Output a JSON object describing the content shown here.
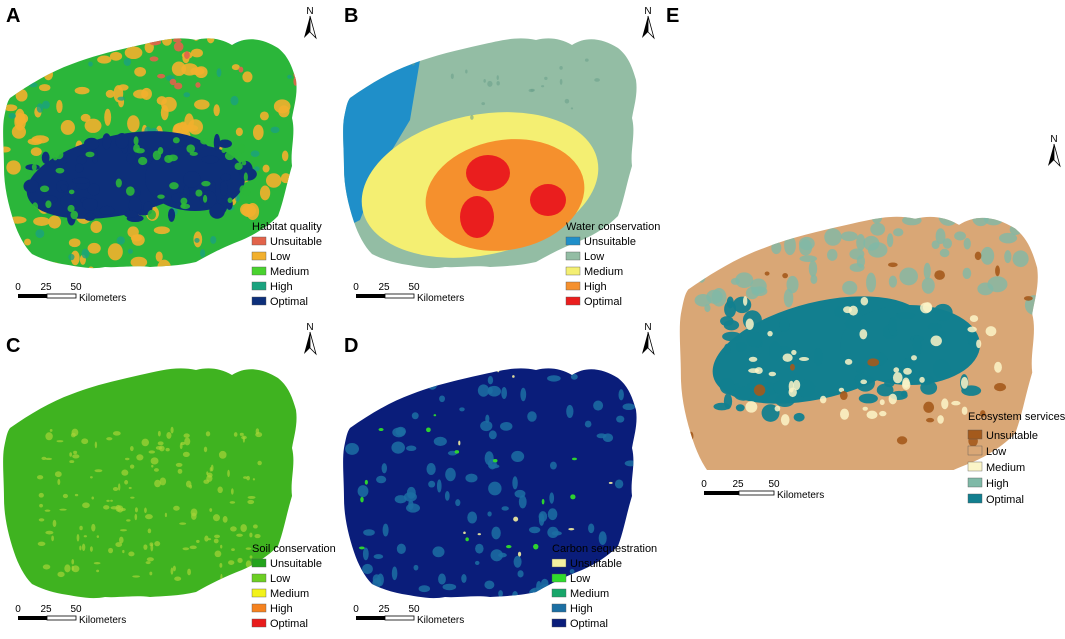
{
  "panels": [
    {
      "letter": "A",
      "legend_title": "Habitat quality",
      "classes": [
        {
          "label": "Unsuitable",
          "color": "#e2634a"
        },
        {
          "label": "Low",
          "color": "#f2b02e"
        },
        {
          "label": "Medium",
          "color": "#49d22e"
        },
        {
          "label": "High",
          "color": "#1aa37f"
        },
        {
          "label": "Optimal",
          "color": "#0d2f7a"
        }
      ]
    },
    {
      "letter": "B",
      "legend_title": "Water conservation",
      "classes": [
        {
          "label": "Unsuitable",
          "color": "#1f8fc9"
        },
        {
          "label": "Low",
          "color": "#93bda4"
        },
        {
          "label": "Medium",
          "color": "#f4ef72"
        },
        {
          "label": "High",
          "color": "#f5902d"
        },
        {
          "label": "Optimal",
          "color": "#ea1e1e"
        }
      ]
    },
    {
      "letter": "C",
      "legend_title": "Soil conservation",
      "classes": [
        {
          "label": "Unsuitable",
          "color": "#23a31c"
        },
        {
          "label": "Low",
          "color": "#6ccf23"
        },
        {
          "label": "Medium",
          "color": "#f2f21a"
        },
        {
          "label": "High",
          "color": "#f5821f"
        },
        {
          "label": "Optimal",
          "color": "#e81c1c"
        }
      ]
    },
    {
      "letter": "D",
      "legend_title": "Carbon sequestration",
      "classes": [
        {
          "label": "Unsuitable",
          "color": "#f4f0a0"
        },
        {
          "label": "Low",
          "color": "#2fdc2c"
        },
        {
          "label": "Medium",
          "color": "#18a66a"
        },
        {
          "label": "High",
          "color": "#1c6fa3"
        },
        {
          "label": "Optimal",
          "color": "#0a1d7a"
        }
      ]
    },
    {
      "letter": "E",
      "legend_title": "Ecosystem services",
      "classes": [
        {
          "label": "Unsuitable",
          "color": "#a45a1c"
        },
        {
          "label": "Low",
          "color": "#d9a776"
        },
        {
          "label": "Medium",
          "color": "#fbf5c8"
        },
        {
          "label": "High",
          "color": "#7fb9a7"
        },
        {
          "label": "Optimal",
          "color": "#127f8f"
        }
      ]
    }
  ],
  "scalebar": {
    "ticks": [
      "0",
      "25",
      "50"
    ],
    "unit": "Kilometers"
  },
  "north_label": "N",
  "map_colors": {
    "A": {
      "base": "#2bb63a",
      "overlay": "#f2b02e",
      "core": "#0d2f7a",
      "accent": "#1aa37f",
      "dot": "#e2634a"
    },
    "B": {
      "west": "#1f8fc9",
      "north": "#93bda4",
      "mid": "#f4ef72",
      "south": "#f5902d",
      "hot": "#ea1e1e"
    },
    "C": {
      "base": "#3fb320",
      "speckle": "#a7d438"
    },
    "D": {
      "base": "#0a1d7a",
      "patch": "#1c6fa3",
      "green": "#2fdc2c",
      "pale": "#f4f0a0"
    },
    "E": {
      "base": "#d9a776",
      "core": "#127f8f",
      "mid": "#7fb9a7",
      "pale": "#fbf5c8",
      "edge": "#a45a1c"
    }
  }
}
